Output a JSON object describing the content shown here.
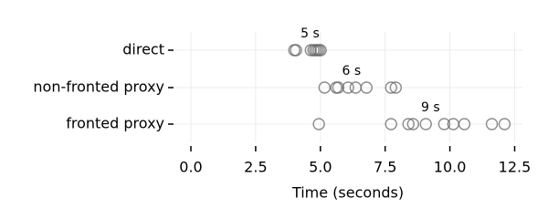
{
  "chart_data": {
    "type": "strip",
    "categories": [
      "direct",
      "non-fronted proxy",
      "fronted proxy"
    ],
    "values": [
      [
        3.99,
        4.06,
        4.63,
        4.73,
        4.8,
        4.87,
        4.94,
        5.01
      ],
      [
        5.16,
        5.61,
        5.69,
        6.07,
        6.36,
        6.78,
        7.73,
        7.91
      ],
      [
        4.94,
        7.73,
        8.4,
        8.58,
        9.07,
        9.78,
        10.13,
        10.56,
        11.62,
        12.11
      ]
    ],
    "annotations": [
      {
        "text": "5 s",
        "x": 4.6
      },
      {
        "text": "6 s",
        "x": 6.2
      },
      {
        "text": "9 s",
        "x": 9.25
      }
    ],
    "xlabel": "Time (seconds)",
    "xlim": [
      -0.6,
      12.8
    ],
    "xticks": [
      {
        "value": 0,
        "label": "0.0"
      },
      {
        "value": 2.5,
        "label": "2.5"
      },
      {
        "value": 5,
        "label": "5.0"
      },
      {
        "value": 7.5,
        "label": "7.5"
      },
      {
        "value": 10,
        "label": "10.0"
      },
      {
        "value": 12.5,
        "label": "12.5"
      }
    ],
    "color": "#666666",
    "grid": true
  }
}
